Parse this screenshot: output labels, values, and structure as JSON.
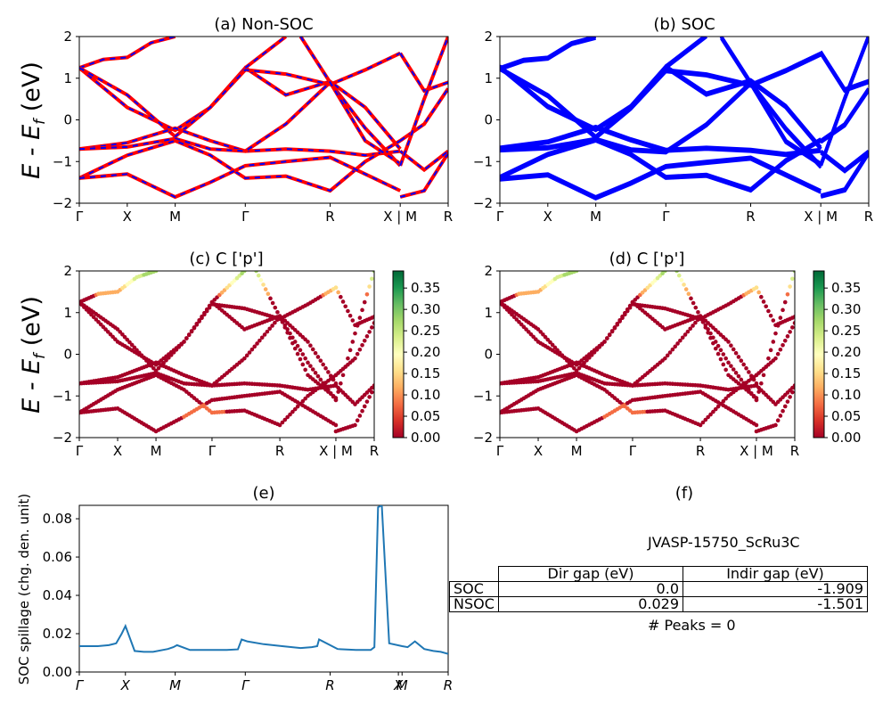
{
  "colors": {
    "nonsoc_line": "#ff0000",
    "nonsoc_dash": "#0000ff",
    "soc_line": "#0000ff",
    "spillage_line": "#1f77b4",
    "colormap": [
      "#a50026",
      "#d73027",
      "#f46d43",
      "#fdae61",
      "#fee08b",
      "#ffffbf",
      "#d9ef8b",
      "#a6d96a",
      "#66bd63",
      "#1a9850",
      "#006837"
    ]
  },
  "panels": {
    "a_title": "(a) Non-SOC",
    "b_title": "(b) SOC",
    "c_title": "(c)  C ['p']",
    "d_title": "(d) C ['p']",
    "e_title": "(e)",
    "f_title": "(f)",
    "ylabel_energy": "E - E",
    "ylabel_energy_sub": "f",
    "ylabel_energy_unit": " (eV)",
    "ylabel_spillage": "SOC spillage (chg. den. unit)"
  },
  "table": {
    "material": "JVASP-15750_ScRu3C",
    "col1": "Dir gap (eV)",
    "col2": "Indir gap (eV)",
    "rows": [
      {
        "label": "SOC",
        "dir": "0.0",
        "indir": "-1.909"
      },
      {
        "label": "NSOC",
        "dir": "0.029",
        "indir": "-1.501"
      }
    ],
    "peaks": "# Peaks = 0"
  },
  "chart_data": [
    {
      "panel": "a",
      "type": "line",
      "title": "(a) Non-SOC",
      "ylabel": "E - E_f (eV)",
      "ylim": [
        -2,
        2
      ],
      "yticks": [
        -2,
        -1,
        0,
        1,
        2
      ],
      "xticks": [
        "Γ",
        "X",
        "M",
        "Γ",
        "R",
        "X | M",
        "R"
      ],
      "xtick_pos": [
        0,
        0.13,
        0.26,
        0.45,
        0.68,
        0.87,
        1.0
      ],
      "bands": [
        [
          [
            0,
            1.25
          ],
          [
            0.065,
            1.45
          ],
          [
            0.13,
            1.5
          ],
          [
            0.195,
            1.85
          ],
          [
            0.26,
            2.0
          ]
        ],
        [
          [
            0,
            1.25
          ],
          [
            0.13,
            0.3
          ],
          [
            0.26,
            -0.25
          ],
          [
            0.355,
            0.3
          ],
          [
            0.45,
            1.25
          ],
          [
            0.56,
            0.6
          ],
          [
            0.68,
            0.92
          ],
          [
            0.775,
            0.3
          ],
          [
            0.87,
            -0.7
          ]
        ],
        [
          [
            0,
            1.25
          ],
          [
            0.13,
            0.6
          ],
          [
            0.26,
            -0.4
          ],
          [
            0.355,
            0.3
          ],
          [
            0.45,
            1.2
          ],
          [
            0.56,
            1.1
          ],
          [
            0.68,
            0.85
          ],
          [
            0.775,
            1.2
          ],
          [
            0.87,
            1.6
          ]
        ],
        [
          [
            0,
            -0.7
          ],
          [
            0.13,
            -0.55
          ],
          [
            0.26,
            -0.2
          ],
          [
            0.355,
            -0.5
          ],
          [
            0.45,
            -0.75
          ],
          [
            0.56,
            -0.7
          ],
          [
            0.68,
            -0.75
          ],
          [
            0.775,
            -0.85
          ],
          [
            0.87,
            -0.75
          ]
        ],
        [
          [
            0,
            -0.7
          ],
          [
            0.13,
            -0.65
          ],
          [
            0.26,
            -0.45
          ],
          [
            0.355,
            -0.7
          ],
          [
            0.45,
            -0.75
          ],
          [
            0.56,
            -0.1
          ],
          [
            0.68,
            0.9
          ],
          [
            0.775,
            -0.2
          ],
          [
            0.87,
            -1.1
          ]
        ],
        [
          [
            0,
            -1.4
          ],
          [
            0.13,
            -0.85
          ],
          [
            0.26,
            -0.5
          ],
          [
            0.355,
            -0.85
          ],
          [
            0.45,
            -1.4
          ],
          [
            0.56,
            -1.35
          ],
          [
            0.68,
            -1.7
          ],
          [
            0.775,
            -1.0
          ],
          [
            0.87,
            -0.5
          ]
        ],
        [
          [
            0,
            -1.4
          ],
          [
            0.13,
            -1.3
          ],
          [
            0.26,
            -1.85
          ],
          [
            0.355,
            -1.5
          ],
          [
            0.45,
            -1.1
          ],
          [
            0.56,
            -1.0
          ],
          [
            0.68,
            -0.9
          ],
          [
            0.775,
            -1.3
          ],
          [
            0.87,
            -1.7
          ]
        ],
        [
          [
            0.45,
            1.25
          ],
          [
            0.56,
            2.0
          ]
        ],
        [
          [
            0.6,
            2.0
          ],
          [
            0.68,
            0.9
          ],
          [
            0.775,
            -0.5
          ],
          [
            0.87,
            -1.05
          ]
        ],
        [
          [
            0.87,
            1.6
          ],
          [
            0.935,
            0.7
          ],
          [
            1.0,
            0.9
          ]
        ],
        [
          [
            0.87,
            -0.5
          ],
          [
            0.935,
            -0.1
          ],
          [
            1.0,
            0.75
          ]
        ],
        [
          [
            0.87,
            -1.85
          ],
          [
            0.935,
            -1.7
          ],
          [
            1.0,
            -0.8
          ]
        ],
        [
          [
            0.87,
            -0.75
          ],
          [
            0.935,
            -1.2
          ],
          [
            1.0,
            -0.75
          ]
        ],
        [
          [
            0.87,
            -1.1
          ],
          [
            0.935,
            0.5
          ],
          [
            1.0,
            2.0
          ]
        ]
      ]
    },
    {
      "panel": "b",
      "type": "line",
      "title": "(b) SOC",
      "ylim": [
        -2,
        2
      ],
      "yticks": [
        -2,
        -1,
        0,
        1,
        2
      ],
      "xticks": [
        "Γ",
        "X",
        "M",
        "Γ",
        "R",
        "X | M",
        "R"
      ]
    },
    {
      "panel": "c",
      "type": "scatter",
      "title": "(c)  C ['p']",
      "ylabel": "E - E_f (eV)",
      "ylim": [
        -2,
        2
      ],
      "yticks": [
        -2,
        -1,
        0,
        1,
        2
      ],
      "xticks": [
        "Γ",
        "X",
        "M",
        "Γ",
        "R",
        "X | M",
        "R"
      ],
      "colorbar_ticks": [
        0.0,
        0.05,
        0.1,
        0.15,
        0.2,
        0.25,
        0.3,
        0.35
      ],
      "colorbar_range": [
        0.0,
        0.39
      ]
    },
    {
      "panel": "d",
      "type": "scatter",
      "title": "(d) C ['p']",
      "ylim": [
        -2,
        2
      ],
      "yticks": [
        -2,
        -1,
        0,
        1,
        2
      ],
      "xticks": [
        "Γ",
        "X",
        "M",
        "Γ",
        "R",
        "X | M",
        "R"
      ],
      "colorbar_ticks": [
        0.0,
        0.05,
        0.1,
        0.15,
        0.2,
        0.25,
        0.3,
        0.35
      ],
      "colorbar_range": [
        0.0,
        0.39
      ]
    },
    {
      "panel": "e",
      "type": "line",
      "title": "(e)",
      "ylabel": "SOC spillage (chg. den. unit)",
      "ylim": [
        0,
        0.087
      ],
      "yticks": [
        0.0,
        0.02,
        0.04,
        0.06,
        0.08
      ],
      "xticks": [
        "Γ",
        "X",
        "M",
        "Γ",
        "R",
        "X",
        "M",
        "R"
      ],
      "xtick_pos": [
        0,
        0.125,
        0.26,
        0.45,
        0.68,
        0.865,
        0.875,
        1.0
      ],
      "series": [
        {
          "x": [
            0,
            0.05,
            0.08,
            0.1,
            0.115,
            0.125,
            0.15,
            0.175,
            0.2,
            0.24,
            0.255,
            0.265,
            0.3,
            0.35,
            0.4,
            0.43,
            0.44,
            0.455,
            0.5,
            0.55,
            0.6,
            0.63,
            0.645,
            0.65,
            0.7,
            0.75,
            0.79,
            0.8,
            0.81,
            0.82,
            0.84,
            0.875,
            0.89,
            0.91,
            0.935,
            0.96,
            0.98,
            1.0
          ],
          "y": [
            0.0135,
            0.0135,
            0.014,
            0.015,
            0.02,
            0.024,
            0.011,
            0.0105,
            0.0105,
            0.012,
            0.013,
            0.014,
            0.0115,
            0.0115,
            0.0115,
            0.0118,
            0.017,
            0.016,
            0.0145,
            0.0135,
            0.0125,
            0.013,
            0.0135,
            0.017,
            0.012,
            0.0115,
            0.0115,
            0.013,
            0.086,
            0.087,
            0.015,
            0.0135,
            0.013,
            0.016,
            0.012,
            0.011,
            0.0105,
            0.0095
          ]
        }
      ]
    }
  ]
}
